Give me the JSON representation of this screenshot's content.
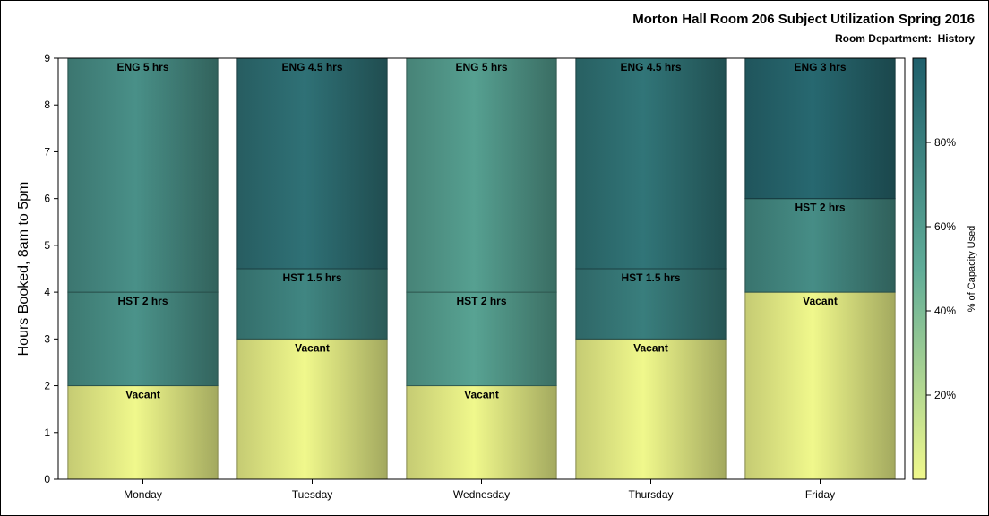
{
  "title": "Morton Hall Room 206 Subject Utilization Spring 2016",
  "subtitle": "Room Department:  History",
  "chart_data": {
    "type": "bar",
    "stacked": true,
    "categories": [
      "Monday",
      "Tuesday",
      "Wednesday",
      "Thursday",
      "Friday"
    ],
    "ylabel": "Hours Booked, 8am to 5pm",
    "xlabel": "",
    "ylim": [
      0,
      9
    ],
    "yticks": [
      0,
      1,
      2,
      3,
      4,
      5,
      6,
      7,
      8,
      9
    ],
    "series": [
      {
        "name": "Vacant",
        "values": [
          2,
          3,
          2,
          3,
          4
        ],
        "labels": [
          "Vacant",
          "Vacant",
          "Vacant",
          "Vacant",
          "Vacant"
        ],
        "pct_capacity": [
          0,
          0,
          0,
          0,
          0
        ]
      },
      {
        "name": "HST",
        "values": [
          2,
          1.5,
          2,
          1.5,
          2
        ],
        "labels": [
          "HST 2 hrs",
          "HST 1.5 hrs",
          "HST 2 hrs",
          "HST 1.5 hrs",
          "HST 2 hrs"
        ],
        "pct_capacity": [
          66,
          75,
          56,
          80,
          70
        ]
      },
      {
        "name": "ENG",
        "values": [
          5,
          4.5,
          5,
          4.5,
          3
        ],
        "labels": [
          "ENG 5 hrs",
          "ENG 4.5 hrs",
          "ENG 5 hrs",
          "ENG 4.5 hrs",
          "ENG 3 hrs"
        ],
        "pct_capacity": [
          68,
          88,
          58,
          86,
          94
        ]
      }
    ],
    "colorbar": {
      "label": "% of Capacity Used",
      "range": [
        0,
        100
      ],
      "ticks": [
        20,
        40,
        60,
        80
      ],
      "tick_labels": [
        "20%",
        "40%",
        "60%",
        "80%"
      ],
      "low_color": "#f0f88c",
      "high_color": "#1f5f6b"
    },
    "grid": false,
    "legend": "colorbar-right"
  }
}
